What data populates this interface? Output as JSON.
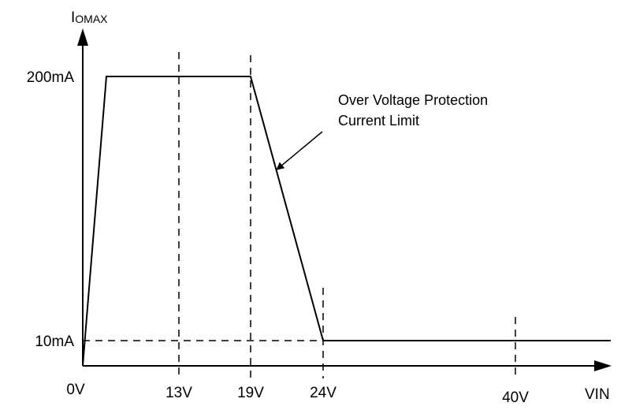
{
  "chart_data": {
    "type": "line",
    "title": "",
    "ylabel": "I",
    "ylabel_subscript": "OMAX",
    "xlabel": "VIN",
    "x_tick_labels": [
      {
        "x": 0,
        "label": "0V"
      },
      {
        "x": 13,
        "label": "13V"
      },
      {
        "x": 19,
        "label": "19V"
      },
      {
        "x": 24,
        "label": "24V"
      },
      {
        "x": 40,
        "label": "40V"
      }
    ],
    "y_tick_labels": [
      {
        "y": 200,
        "label": "200mA"
      },
      {
        "y": 10,
        "label": "10mA"
      }
    ],
    "series": [
      {
        "x": [
          0,
          3.2,
          19,
          24,
          37
        ],
        "y": [
          0,
          200,
          200,
          10,
          10
        ]
      }
    ],
    "dashed_verticals": [
      13,
      19,
      24,
      40
    ],
    "dashed_horizontals": [
      10
    ],
    "annotation": {
      "line1": "Over Voltage Protection",
      "line2": "Current Limit",
      "points_to": {
        "x": 20.8,
        "y": 133
      }
    },
    "xlim": [
      0,
      37
    ],
    "ylim": [
      0,
      200
    ],
    "grid": false,
    "legend": "none",
    "color": "#000000"
  }
}
